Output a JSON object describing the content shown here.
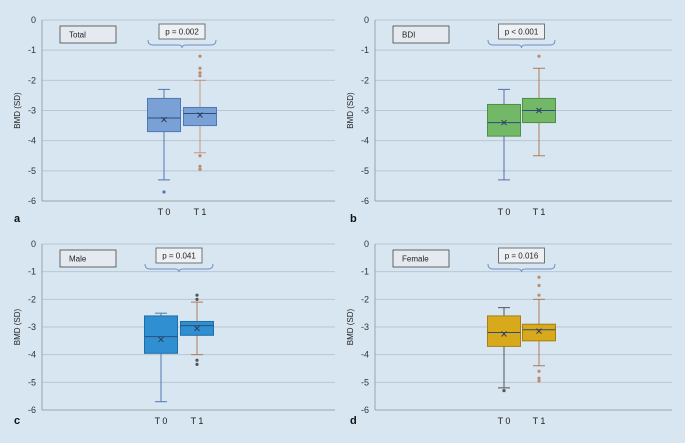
{
  "figure": {
    "background": "#d7e6f1"
  },
  "chart_data": [
    {
      "type": "box",
      "panel_letter": "a",
      "title": "Total",
      "ylabel": "BMD (SD)",
      "ylim": [
        -6,
        0
      ],
      "yticks": [
        0,
        -1,
        -2,
        -3,
        -4,
        -5,
        -6
      ],
      "categories": [
        "T 0",
        "T 1"
      ],
      "p_value": "p = 0.002",
      "boxes": [
        {
          "name": "T 0",
          "fill": "#7aa1d6",
          "stroke": "#4f78b4",
          "whisker_color": "#4f78b4",
          "min": -5.3,
          "q1": -3.7,
          "median": -3.25,
          "q3": -2.6,
          "max": -2.3,
          "mean": -3.3,
          "outliers": [
            -5.7
          ]
        },
        {
          "name": "T 1",
          "fill": "#7aa1d6",
          "stroke": "#4f78b4",
          "whisker_color": "#c59a7e",
          "min": -4.4,
          "q1": -3.5,
          "median": -3.1,
          "q3": -2.9,
          "max": -2.0,
          "mean": -3.15,
          "outlier_color": "#c08a6c",
          "outliers": [
            -1.2,
            -1.6,
            -1.75,
            -1.85,
            -4.5,
            -4.85,
            -4.95
          ]
        }
      ]
    },
    {
      "type": "box",
      "panel_letter": "b",
      "title": "BDI",
      "ylabel": "BMD (SD)",
      "ylim": [
        -6,
        0
      ],
      "yticks": [
        0,
        -1,
        -2,
        -3,
        -4,
        -5,
        -6
      ],
      "categories": [
        "T 0",
        "T 1"
      ],
      "p_value": "p < 0.001",
      "boxes": [
        {
          "name": "T 0",
          "fill": "#72b866",
          "stroke": "#4d8f44",
          "whisker_color": "#5a6fa8",
          "min": -5.3,
          "q1": -3.85,
          "median": -3.4,
          "q3": -2.8,
          "max": -2.3,
          "mean": -3.4,
          "outliers": []
        },
        {
          "name": "T 1",
          "fill": "#72b866",
          "stroke": "#4d8f44",
          "whisker_color": "#b07a5c",
          "min": -4.5,
          "q1": -3.4,
          "median": -3.0,
          "q3": -2.6,
          "max": -1.6,
          "mean": -3.0,
          "outlier_color": "#c08a6c",
          "outliers": [
            -1.2
          ]
        }
      ]
    },
    {
      "type": "box",
      "panel_letter": "c",
      "title": "Male",
      "ylabel": "BMD (SD)",
      "ylim": [
        -6,
        0
      ],
      "yticks": [
        0,
        -1,
        -2,
        -3,
        -4,
        -5,
        -6
      ],
      "categories": [
        "T 0",
        "T 1"
      ],
      "p_value": "p = 0.041",
      "boxes": [
        {
          "name": "T 0",
          "fill": "#2f8fd0",
          "stroke": "#1f6ea8",
          "whisker_color": "#4f78b4",
          "min": -5.7,
          "q1": -3.95,
          "median": -3.35,
          "q3": -2.6,
          "max": -2.5,
          "mean": -3.45,
          "outliers": []
        },
        {
          "name": "T 1",
          "fill": "#2f8fd0",
          "stroke": "#1f6ea8",
          "whisker_color": "#b07a5c",
          "min": -4.0,
          "q1": -3.3,
          "median": -2.95,
          "q3": -2.8,
          "max": -2.1,
          "mean": -3.05,
          "outlier_color": "#555555",
          "outliers": [
            -1.85,
            -2.0,
            -4.2,
            -4.35
          ]
        }
      ]
    },
    {
      "type": "box",
      "panel_letter": "d",
      "title": "Female",
      "ylabel": "BMD (SD)",
      "ylim": [
        -6,
        0
      ],
      "yticks": [
        0,
        -1,
        -2,
        -3,
        -4,
        -5,
        -6
      ],
      "categories": [
        "T 0",
        "T 1"
      ],
      "p_value": "p = 0.016",
      "boxes": [
        {
          "name": "T 0",
          "fill": "#d9a91c",
          "stroke": "#a77f10",
          "whisker_color": "#555555",
          "min": -5.2,
          "q1": -3.7,
          "median": -3.2,
          "q3": -2.6,
          "max": -2.3,
          "mean": -3.25,
          "outlier_color": "#555555",
          "outliers": [
            -5.3
          ]
        },
        {
          "name": "T 1",
          "fill": "#d9a91c",
          "stroke": "#a77f10",
          "whisker_color": "#b07a5c",
          "min": -4.4,
          "q1": -3.5,
          "median": -3.1,
          "q3": -2.9,
          "max": -2.0,
          "mean": -3.15,
          "outlier_color": "#c08a6c",
          "outliers": [
            -1.2,
            -1.5,
            -1.85,
            -4.6,
            -4.85,
            -4.95
          ]
        }
      ]
    }
  ]
}
